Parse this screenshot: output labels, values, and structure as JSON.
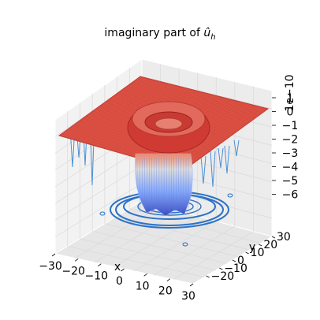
{
  "chart_data": {
    "type": "surface3d",
    "title": "imaginary part of û_h",
    "title_base": "imaginary part of ",
    "title_symbol": "û",
    "title_subscript": "h",
    "xlabel": "x",
    "ylabel": "y",
    "zlabel": "",
    "offset_text": "1e−10",
    "x_ticks": [
      "−30",
      "−20",
      "−10",
      "0",
      "10",
      "20",
      "30"
    ],
    "y_ticks": [
      "−20",
      "−10",
      "0",
      "10",
      "20",
      "30"
    ],
    "z_ticks": [
      "1",
      "0",
      "−1",
      "−2",
      "−3",
      "−4",
      "−5",
      "−6"
    ],
    "xlim": [
      -30,
      30
    ],
    "ylim": [
      -30,
      30
    ],
    "zlim": [
      -6,
      1
    ],
    "z_scale": 1e-10,
    "plateau_value": 0,
    "ring_peak": 0.5,
    "center_min": -5.9,
    "colormap": "coolwarm",
    "colors": {
      "high": "#b40426",
      "mid": "#dddddd",
      "low": "#3b4cc0",
      "contour": "#2c72c7"
    },
    "grid": true,
    "legend": "none"
  }
}
